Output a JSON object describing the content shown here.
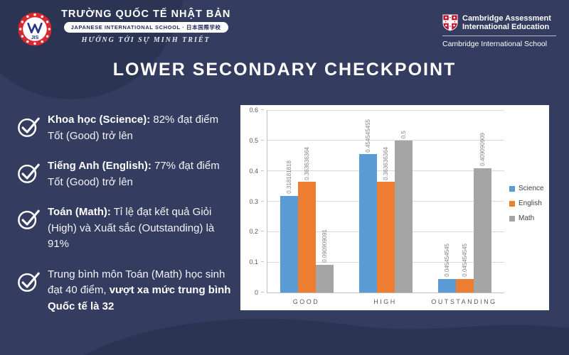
{
  "colors": {
    "background": "#343c5f",
    "decoration": "#2c3453",
    "panel": "#ffffff",
    "brand_red": "#d7282f",
    "brand_blue": "#27348b",
    "science": "#5B9BD5",
    "english": "#ED7D31",
    "math": "#A5A5A5"
  },
  "header": {
    "school": {
      "logo_text": "JIS",
      "name": "TRƯỜNG QUỐC TẾ NHẬT BẢN",
      "subtitle": "JAPANESE INTERNATIONAL SCHOOL · 日本国際学校",
      "motto": "HƯỚNG TỚI SỰ MINH TRIẾT"
    },
    "cambridge": {
      "line1": "Cambridge Assessment",
      "line2": "International Education",
      "line3": "Cambridge International School"
    }
  },
  "title": "LOWER SECONDARY CHECKPOINT",
  "checklist": {
    "items": [
      {
        "bold": "Khoa học (Science):",
        "normal": " 82% đạt điểm Tốt (Good) trở lên",
        "bold_first": true
      },
      {
        "bold": "Tiếng Anh (English):",
        "normal": " 77% đạt điểm Tốt (Good) trở lên",
        "bold_first": true
      },
      {
        "bold": "Toán (Math):",
        "normal": " Tỉ lệ đạt kết quả Giỏi (High) và Xuất sắc (Outstanding) là 91%",
        "bold_first": true
      },
      {
        "normal": "Trung bình môn Toán (Math) học sinh đạt 40 điểm, ",
        "bold": "vượt xa mức trung bình Quốc tế là 32",
        "bold_first": false
      }
    ]
  },
  "chart_data": {
    "type": "bar",
    "categories": [
      "GOOD",
      "HIGH",
      "OUTSTANDING"
    ],
    "series": [
      {
        "name": "Science",
        "color": "#5B9BD5",
        "values": [
          0.318181818,
          0.454545455,
          0.045454545
        ],
        "labels": [
          "0.318181818",
          "0.454545455",
          "0.045454545"
        ]
      },
      {
        "name": "English",
        "color": "#ED7D31",
        "values": [
          0.363636364,
          0.363636364,
          0.045454545
        ],
        "labels": [
          "0.363636364",
          "0.363636364",
          "0.045454545"
        ]
      },
      {
        "name": "Math",
        "color": "#A5A5A5",
        "values": [
          0.090909091,
          0.5,
          0.409090909
        ],
        "labels": [
          "0.090909091",
          "0.5",
          "0.409090909"
        ]
      }
    ],
    "title": "",
    "xlabel": "",
    "ylabel": "",
    "ylim": [
      0,
      0.6
    ],
    "yticks": [
      "0",
      "0.1",
      "0.2",
      "0.3",
      "0.4",
      "0.5",
      "0.6"
    ],
    "grid": true,
    "legend_position": "right",
    "data_label_rotation": 90
  }
}
